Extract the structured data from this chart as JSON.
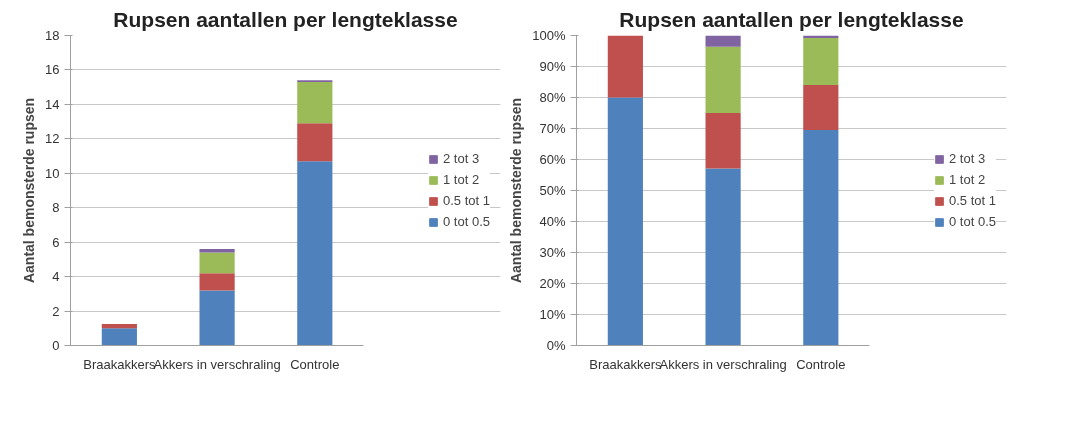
{
  "chart_data": [
    {
      "type": "bar",
      "title": "Rupsen aantallen per lengteklasse",
      "ylabel": "Aantal bemonsterde rupsen",
      "categories": [
        "Braakakkers",
        "Akkers in verschraling",
        "Controle"
      ],
      "stacked": true,
      "ylim": [
        0,
        18
      ],
      "yticks": [
        0,
        2,
        4,
        6,
        8,
        10,
        12,
        14,
        16,
        18
      ],
      "grid": "y",
      "legend": "right",
      "series": [
        {
          "name": "0 tot 0.5",
          "color": "#4f81bd",
          "values": [
            1.0,
            3.2,
            10.7
          ]
        },
        {
          "name": "0.5 tot 1",
          "color": "#c0504d",
          "values": [
            0.25,
            1.0,
            2.2
          ]
        },
        {
          "name": "1 tot 2",
          "color": "#9bbb59",
          "values": [
            0,
            1.2,
            2.4
          ]
        },
        {
          "name": "2 tot 3",
          "color": "#8064a2",
          "values": [
            0,
            0.2,
            0.1
          ]
        }
      ]
    },
    {
      "type": "bar",
      "title": "Rupsen aantallen per lengteklasse",
      "ylabel": "Aantal bemonsterde rupsen",
      "categories": [
        "Braakakkers",
        "Akkers in verschraling",
        "Controle"
      ],
      "stacked": true,
      "ylim": [
        0,
        100
      ],
      "yticks": [
        {
          "value": 0,
          "label": "0%"
        },
        {
          "value": 10,
          "label": "10%"
        },
        {
          "value": 20,
          "label": "20%"
        },
        {
          "value": 30,
          "label": "30%"
        },
        {
          "value": 40,
          "label": "40%"
        },
        {
          "value": 50,
          "label": "50%"
        },
        {
          "value": 60,
          "label": "60%"
        },
        {
          "value": 70,
          "label": "70%"
        },
        {
          "value": 80,
          "label": "80%"
        },
        {
          "value": 90,
          "label": "90%"
        },
        {
          "value": 100,
          "label": "100%"
        }
      ],
      "grid": "y",
      "legend": "right",
      "series": [
        {
          "name": "0 tot 0.5",
          "color": "#4f81bd",
          "values": [
            80,
            57.1,
            69.5
          ]
        },
        {
          "name": "0.5 tot 1",
          "color": "#c0504d",
          "values": [
            20,
            17.9,
            14.5
          ]
        },
        {
          "name": "1 tot 2",
          "color": "#9bbb59",
          "values": [
            0,
            21.4,
            15.2
          ]
        },
        {
          "name": "2 tot 3",
          "color": "#8064a2",
          "values": [
            0,
            3.6,
            0.8
          ]
        }
      ]
    }
  ]
}
